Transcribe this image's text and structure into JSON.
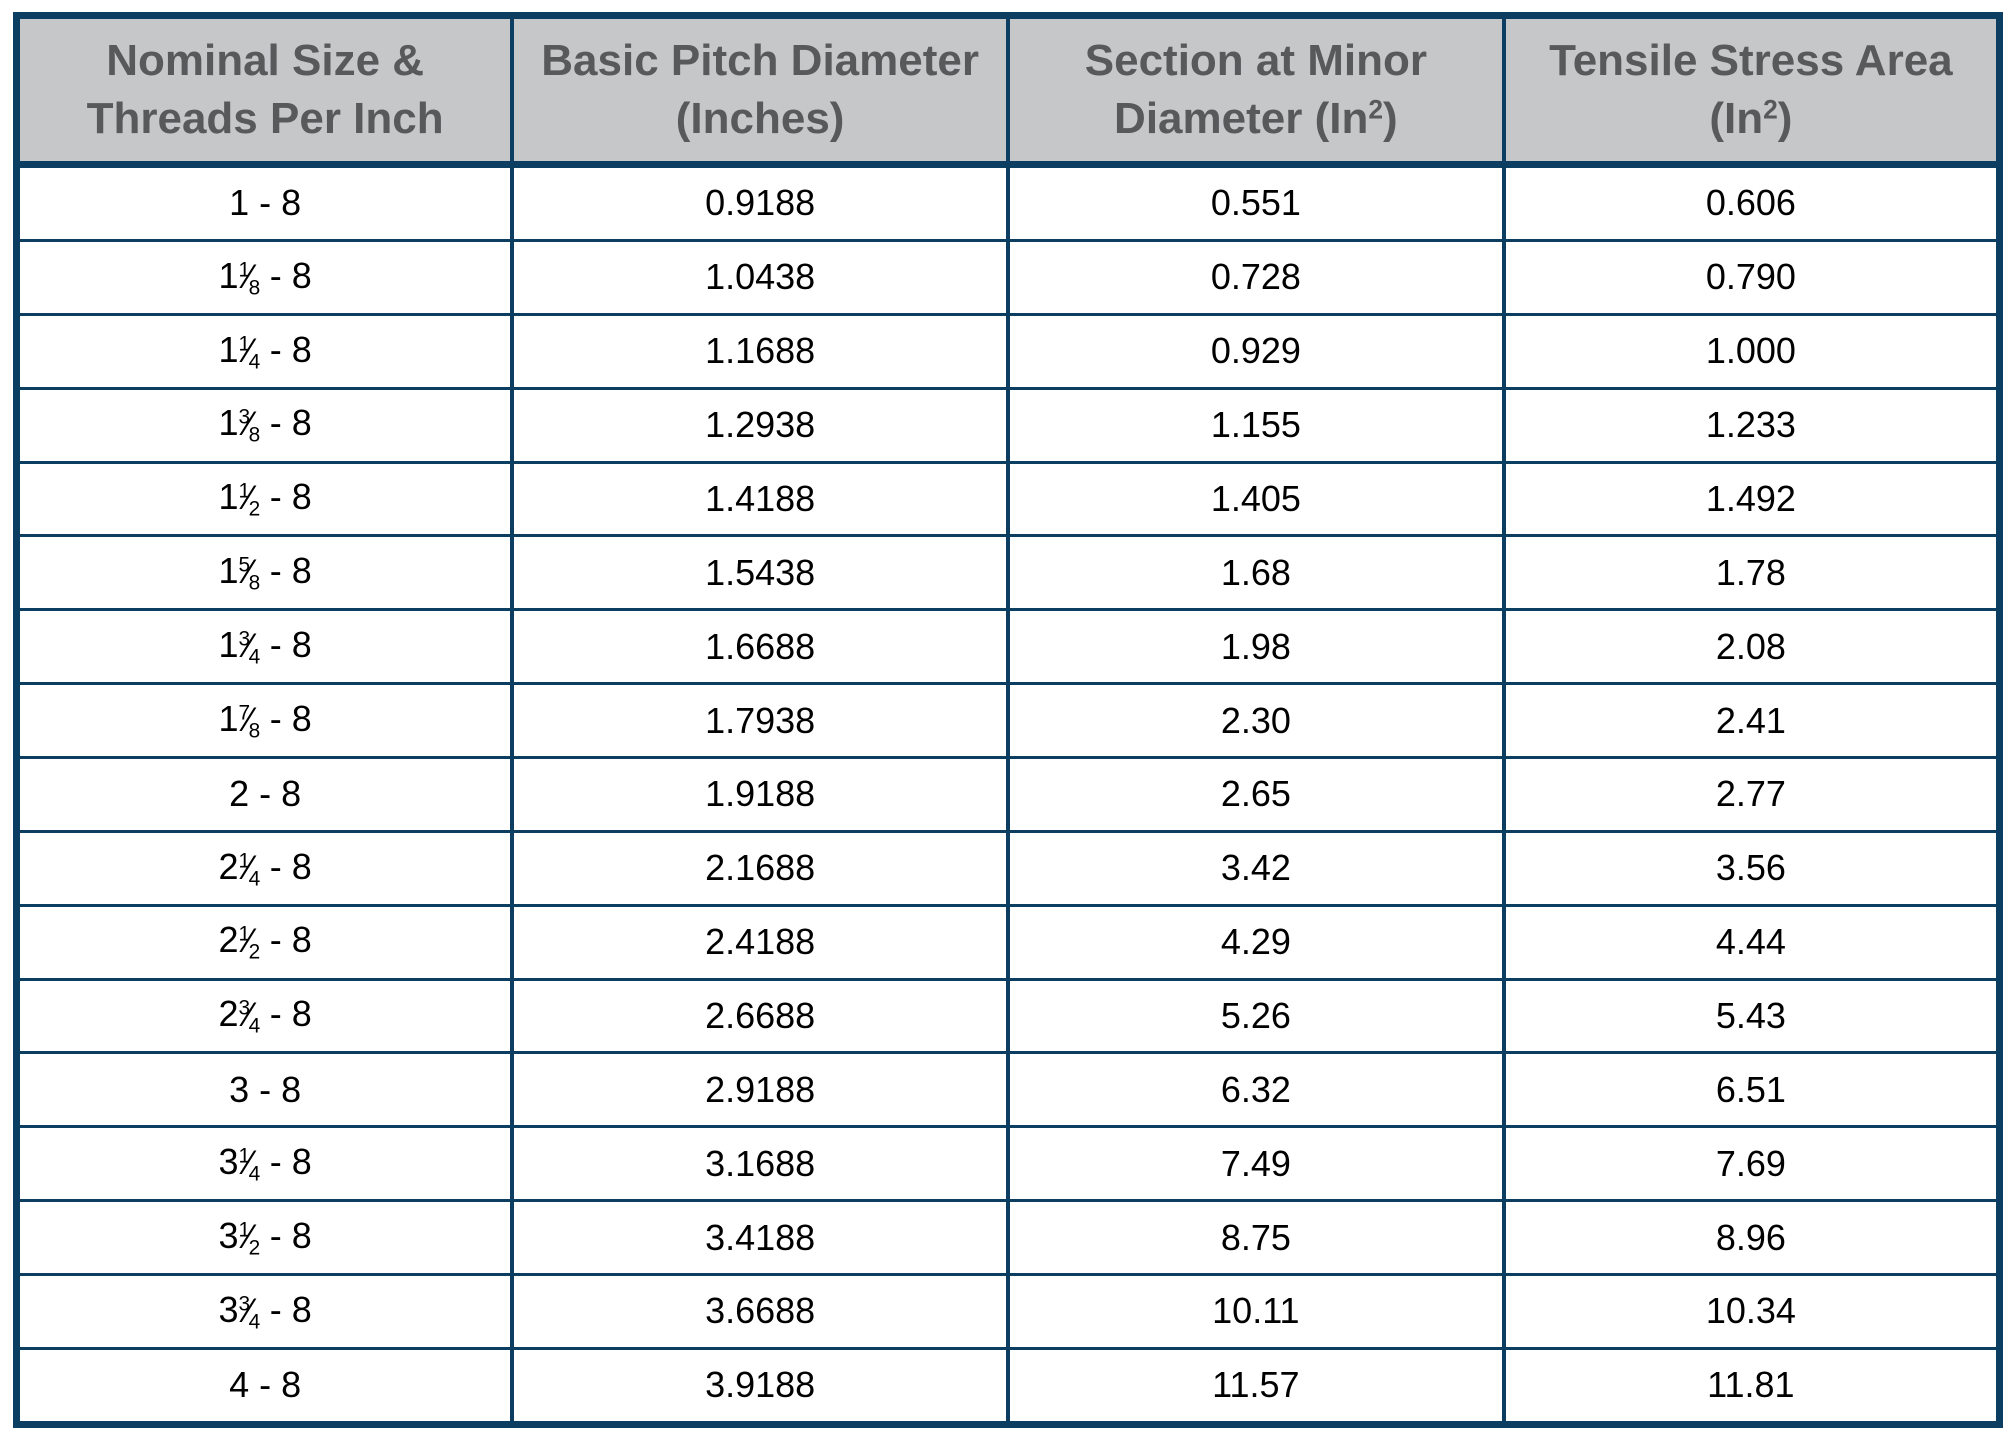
{
  "colors": {
    "border": "#0c3e62",
    "header_bg": "#c6c7c9",
    "header_text": "#58595b",
    "body_text": "#000000",
    "body_bg": "#ffffff"
  },
  "chart_data": {
    "type": "table",
    "columns": [
      "Nominal Size & Threads Per Inch",
      "Basic Pitch Diameter (Inches)",
      "Section at Minor Diameter (In²)",
      "Tensile Stress Area (In²)"
    ],
    "rows": [
      [
        "1 - 8",
        "0.9188",
        "0.551",
        "0.606"
      ],
      [
        "1⅛ - 8",
        "1.0438",
        "0.728",
        "0.790"
      ],
      [
        "1¼ - 8",
        "1.1688",
        "0.929",
        "1.000"
      ],
      [
        "1⅜ - 8",
        "1.2938",
        "1.155",
        "1.233"
      ],
      [
        "1½ - 8",
        "1.4188",
        "1.405",
        "1.492"
      ],
      [
        "1⅝ - 8",
        "1.5438",
        "1.68",
        "1.78"
      ],
      [
        "1¾ - 8",
        "1.6688",
        "1.98",
        "2.08"
      ],
      [
        "1⅞ - 8",
        "1.7938",
        "2.30",
        "2.41"
      ],
      [
        "2 - 8",
        "1.9188",
        "2.65",
        "2.77"
      ],
      [
        "2¼ - 8",
        "2.1688",
        "3.42",
        "3.56"
      ],
      [
        "2½ - 8",
        "2.4188",
        "4.29",
        "4.44"
      ],
      [
        "2¾ - 8",
        "2.6688",
        "5.26",
        "5.43"
      ],
      [
        "3 - 8",
        "2.9188",
        "6.32",
        "6.51"
      ],
      [
        "3¼ - 8",
        "3.1688",
        "7.49",
        "7.69"
      ],
      [
        "3½ - 8",
        "3.4188",
        "8.75",
        "8.96"
      ],
      [
        "3¾ - 8",
        "3.6688",
        "10.11",
        "10.34"
      ],
      [
        "4 - 8",
        "3.9188",
        "11.57",
        "11.81"
      ]
    ]
  }
}
